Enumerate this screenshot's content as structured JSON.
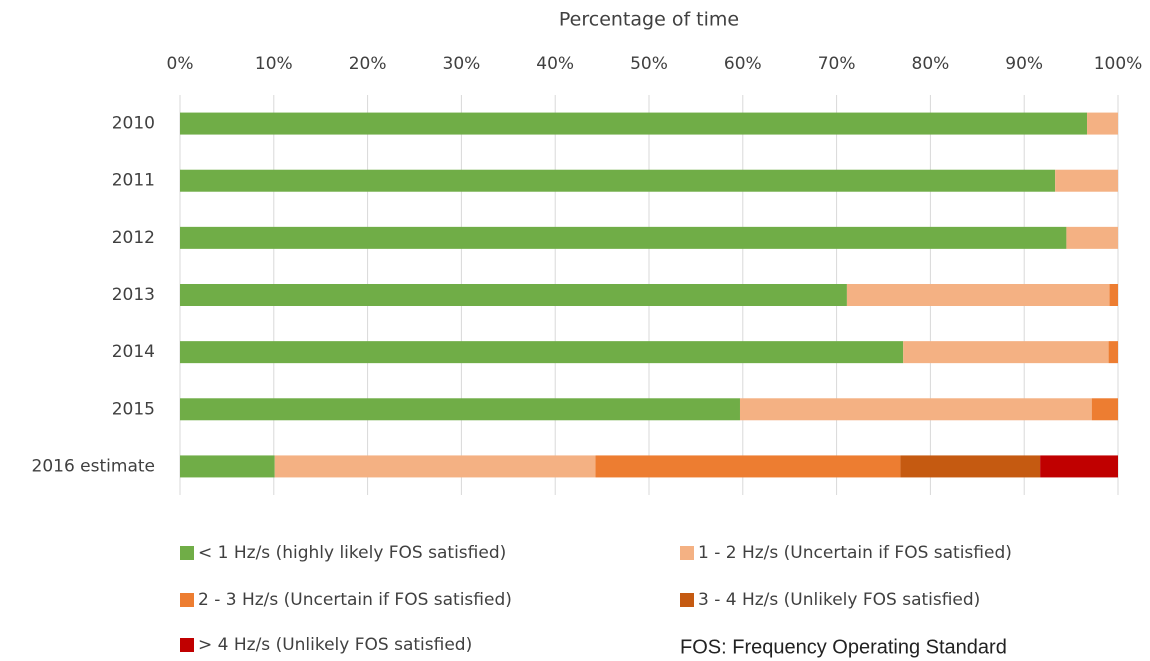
{
  "chart_data": {
    "type": "stacked-bar-horizontal",
    "title": "Percentage of time",
    "categories": [
      "2010",
      "2011",
      "2012",
      "2013",
      "2014",
      "2015",
      "2016 estimate"
    ],
    "series": [
      {
        "name": "< 1 Hz/s (highly likely FOS satisfied)",
        "color": "#70ad47",
        "values": [
          96.7,
          93.3,
          94.5,
          71.1,
          77.1,
          59.7,
          10.1
        ]
      },
      {
        "name": "1 - 2 Hz/s (Uncertain if FOS satisfied)",
        "color": "#f4b183",
        "values": [
          3.3,
          6.7,
          5.5,
          28.0,
          21.9,
          37.5,
          34.2
        ]
      },
      {
        "name": "2 - 3 Hz/s (Uncertain if FOS satisfied)",
        "color": "#ed7d31",
        "values": [
          0,
          0,
          0,
          0.9,
          1.0,
          2.8,
          32.5
        ]
      },
      {
        "name": "3 - 4 Hz/s (Unlikely FOS satisfied)",
        "color": "#c55a11",
        "values": [
          0,
          0,
          0,
          0,
          0,
          0,
          14.9
        ]
      },
      {
        "name": "> 4 Hz/s (Unlikely FOS satisfied)",
        "color": "#c00000",
        "values": [
          0,
          0,
          0,
          0,
          0,
          0,
          8.3
        ]
      }
    ],
    "xlim": [
      0,
      100
    ],
    "xticks": [
      {
        "value": 0,
        "label": "0%"
      },
      {
        "value": 10,
        "label": "10%"
      },
      {
        "value": 20,
        "label": "20%"
      },
      {
        "value": 30,
        "label": "30%"
      },
      {
        "value": 40,
        "label": "40%"
      },
      {
        "value": 50,
        "label": "50%"
      },
      {
        "value": 60,
        "label": "60%"
      },
      {
        "value": 70,
        "label": "70%"
      },
      {
        "value": 80,
        "label": "80%"
      },
      {
        "value": 90,
        "label": "90%"
      },
      {
        "value": 100,
        "label": "100%"
      }
    ],
    "grid": true,
    "annotation": "FOS: Frequency Operating Standard"
  }
}
